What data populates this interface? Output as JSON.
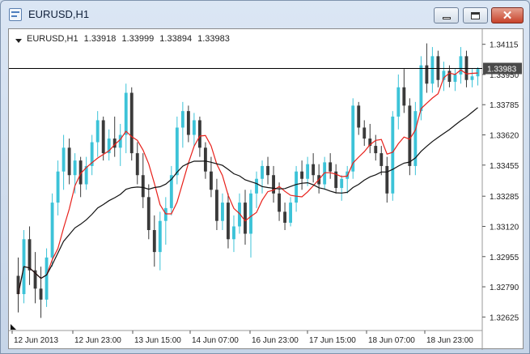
{
  "window": {
    "title": "EURUSD,H1",
    "controls": {
      "minimize": "minimize",
      "maximize": "maximize",
      "close": "close"
    }
  },
  "chart_header": {
    "symbol": "EURUSD,H1",
    "open": "1.33918",
    "high": "1.33999",
    "low": "1.33894",
    "close": "1.33983"
  },
  "chart_data": {
    "type": "candlestick",
    "symbol": "EURUSD",
    "timeframe": "H1",
    "ylim": [
      1.3256,
      1.3418
    ],
    "y_ticks": [
      "1.34115",
      "1.33950",
      "1.33785",
      "1.33620",
      "1.33455",
      "1.33285",
      "1.33120",
      "1.32955",
      "1.32790",
      "1.32625"
    ],
    "x_ticks": [
      "12 Jun 2013",
      "12 Jun 23:00",
      "13 Jun 15:00",
      "14 Jun 07:00",
      "16 Jun 23:00",
      "17 Jun 15:00",
      "18 Jun 07:00",
      "18 Jun 23:00"
    ],
    "current_price": "1.33983",
    "colors": {
      "up": "#3cc3d8",
      "down": "#3a3a3a",
      "fast_ma": "#e8201a",
      "slow_ma": "#111111",
      "price_line": "#000000",
      "price_label_bg": "#4a4a4a"
    },
    "candles": [
      [
        1.3285,
        1.3295,
        1.3265,
        1.3275
      ],
      [
        1.3275,
        1.331,
        1.327,
        1.3305
      ],
      [
        1.3305,
        1.3312,
        1.328,
        1.3288
      ],
      [
        1.3288,
        1.3298,
        1.327,
        1.3278
      ],
      [
        1.3278,
        1.329,
        1.3262,
        1.3272
      ],
      [
        1.3272,
        1.33,
        1.3268,
        1.3295
      ],
      [
        1.3295,
        1.333,
        1.329,
        1.3325
      ],
      [
        1.3325,
        1.3348,
        1.3318,
        1.3342
      ],
      [
        1.3342,
        1.3362,
        1.3332,
        1.3355
      ],
      [
        1.3355,
        1.336,
        1.3335,
        1.334
      ],
      [
        1.334,
        1.3352,
        1.333,
        1.3348
      ],
      [
        1.3348,
        1.335,
        1.3328,
        1.3335
      ],
      [
        1.3335,
        1.335,
        1.3332,
        1.3345
      ],
      [
        1.3345,
        1.3362,
        1.334,
        1.3358
      ],
      [
        1.3358,
        1.3375,
        1.335,
        1.337
      ],
      [
        1.337,
        1.3372,
        1.3348,
        1.3352
      ],
      [
        1.3352,
        1.3365,
        1.3348,
        1.336
      ],
      [
        1.336,
        1.3372,
        1.335,
        1.3355
      ],
      [
        1.3355,
        1.3368,
        1.3345,
        1.3362
      ],
      [
        1.3362,
        1.339,
        1.3352,
        1.3385
      ],
      [
        1.3385,
        1.3388,
        1.3348,
        1.3352
      ],
      [
        1.3352,
        1.3358,
        1.3335,
        1.334
      ],
      [
        1.334,
        1.3352,
        1.3322,
        1.3328
      ],
      [
        1.3328,
        1.3335,
        1.3305,
        1.331
      ],
      [
        1.331,
        1.3318,
        1.329,
        1.3298
      ],
      [
        1.3298,
        1.332,
        1.3288,
        1.3315
      ],
      [
        1.3315,
        1.3328,
        1.3302,
        1.3322
      ],
      [
        1.3322,
        1.3345,
        1.3318,
        1.334
      ],
      [
        1.334,
        1.3372,
        1.3335,
        1.3366
      ],
      [
        1.3366,
        1.338,
        1.3355,
        1.3375
      ],
      [
        1.3375,
        1.3378,
        1.3358,
        1.3362
      ],
      [
        1.3362,
        1.3374,
        1.3356,
        1.337
      ],
      [
        1.337,
        1.3372,
        1.335,
        1.3355
      ],
      [
        1.3355,
        1.3358,
        1.3338,
        1.3342
      ],
      [
        1.3342,
        1.335,
        1.3328,
        1.3332
      ],
      [
        1.3332,
        1.3338,
        1.331,
        1.3315
      ],
      [
        1.3315,
        1.333,
        1.331,
        1.3325
      ],
      [
        1.3325,
        1.333,
        1.33,
        1.3305
      ],
      [
        1.3305,
        1.3318,
        1.3298,
        1.3312
      ],
      [
        1.3312,
        1.333,
        1.3308,
        1.3325
      ],
      [
        1.3325,
        1.3332,
        1.3302,
        1.3308
      ],
      [
        1.3308,
        1.3332,
        1.3295,
        1.333
      ],
      [
        1.333,
        1.3342,
        1.3322,
        1.3338
      ],
      [
        1.3338,
        1.3348,
        1.333,
        1.3345
      ],
      [
        1.3345,
        1.335,
        1.3335,
        1.334
      ],
      [
        1.334,
        1.3345,
        1.3325,
        1.333
      ],
      [
        1.333,
        1.3336,
        1.3315,
        1.332
      ],
      [
        1.332,
        1.3325,
        1.331,
        1.3314
      ],
      [
        1.3314,
        1.3328,
        1.3312,
        1.3325
      ],
      [
        1.3325,
        1.3345,
        1.332,
        1.3342
      ],
      [
        1.3342,
        1.3348,
        1.3332,
        1.3338
      ],
      [
        1.3338,
        1.335,
        1.3334,
        1.3346
      ],
      [
        1.3346,
        1.3352,
        1.3336,
        1.334
      ],
      [
        1.334,
        1.3346,
        1.333,
        1.3335
      ],
      [
        1.3335,
        1.335,
        1.3332,
        1.3347
      ],
      [
        1.3347,
        1.3352,
        1.3338,
        1.3342
      ],
      [
        1.3342,
        1.3346,
        1.333,
        1.3333
      ],
      [
        1.3333,
        1.334,
        1.3326,
        1.3338
      ],
      [
        1.3338,
        1.3345,
        1.333,
        1.3342
      ],
      [
        1.3342,
        1.3382,
        1.3338,
        1.3378
      ],
      [
        1.3378,
        1.338,
        1.3362,
        1.3366
      ],
      [
        1.3366,
        1.337,
        1.3356,
        1.336
      ],
      [
        1.336,
        1.3368,
        1.3352,
        1.3356
      ],
      [
        1.3356,
        1.3362,
        1.3348,
        1.3352
      ],
      [
        1.3352,
        1.3356,
        1.334,
        1.3345
      ],
      [
        1.3345,
        1.335,
        1.3325,
        1.333
      ],
      [
        1.333,
        1.3375,
        1.3326,
        1.3372
      ],
      [
        1.3372,
        1.3395,
        1.3365,
        1.3388
      ],
      [
        1.3388,
        1.3398,
        1.3374,
        1.3378
      ],
      [
        1.3378,
        1.3382,
        1.334,
        1.3345
      ],
      [
        1.3345,
        1.338,
        1.334,
        1.3375
      ],
      [
        1.3375,
        1.3405,
        1.337,
        1.34
      ],
      [
        1.34,
        1.3412,
        1.3385,
        1.339
      ],
      [
        1.339,
        1.341,
        1.3385,
        1.3405
      ],
      [
        1.3405,
        1.3408,
        1.3388,
        1.3392
      ],
      [
        1.3392,
        1.3402,
        1.3386,
        1.3397
      ],
      [
        1.3397,
        1.34,
        1.3388,
        1.3391
      ],
      [
        1.3391,
        1.3398,
        1.3386,
        1.3395
      ],
      [
        1.3395,
        1.341,
        1.339,
        1.3405
      ],
      [
        1.3405,
        1.3408,
        1.3388,
        1.3392
      ],
      [
        1.3392,
        1.3398,
        1.3388,
        1.3394
      ],
      [
        1.3394,
        1.3399,
        1.3389,
        1.3398
      ]
    ]
  }
}
